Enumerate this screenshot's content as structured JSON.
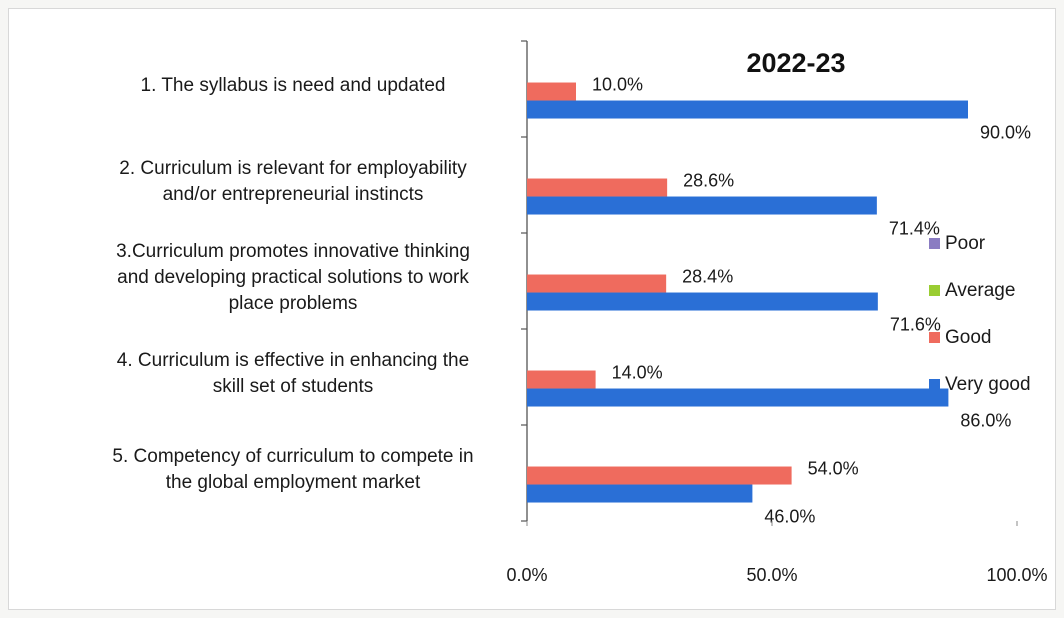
{
  "chart_data": {
    "type": "bar",
    "orientation": "horizontal",
    "title": "2022-23",
    "categories": [
      [
        "1. The syllabus is need and updated"
      ],
      [
        "2. Curriculum is relevant for employability",
        "and/or entrepreneurial instincts"
      ],
      [
        "3.Curriculum promotes innovative thinking",
        "and developing practical solutions to work",
        "place problems"
      ],
      [
        "4. Curriculum is effective in enhancing the",
        "skill set of students"
      ],
      [
        "5. Competency of curriculum to compete in",
        "the global employment market"
      ]
    ],
    "series": [
      {
        "name": "Poor",
        "color": "#8a7cc2",
        "values": [
          0,
          0,
          0,
          0,
          0
        ],
        "labels": [
          "",
          "",
          "",
          "",
          ""
        ]
      },
      {
        "name": "Average",
        "color": "#9acd32",
        "values": [
          0,
          0,
          0,
          0,
          0
        ],
        "labels": [
          "",
          "",
          "",
          "",
          ""
        ]
      },
      {
        "name": "Good",
        "color": "#ef6b5e",
        "values": [
          10.0,
          28.6,
          28.4,
          14.0,
          54.0
        ],
        "labels": [
          "10.0%",
          "28.6%",
          "28.4%",
          "14.0%",
          "54.0%"
        ]
      },
      {
        "name": "Very good",
        "color": "#2a6fd6",
        "values": [
          90.0,
          71.4,
          71.6,
          86.0,
          46.0
        ],
        "labels": [
          "90.0%",
          "71.4%",
          "71.6%",
          "86.0%",
          "46.0%"
        ]
      }
    ],
    "x_ticks": [
      "0.0%",
      "50.0%",
      "100.0%"
    ],
    "xlim": [
      0,
      100
    ],
    "legend_position": "right",
    "grid": false
  }
}
